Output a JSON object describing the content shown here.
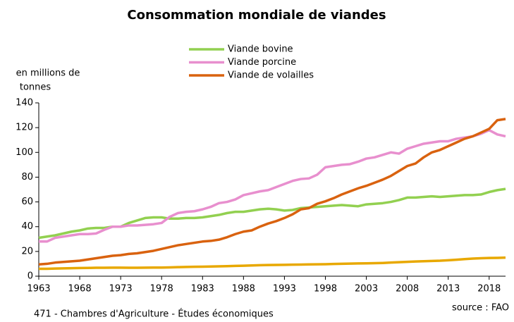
{
  "chart_data": {
    "type": "line",
    "title": "Consommation mondiale de viandes",
    "ylabel": [
      "en millions de",
      "tonnes"
    ],
    "footer": "471 - Chambres d'Agriculture - Études économiques",
    "source": "source : FAO",
    "x": [
      1963,
      1964,
      1965,
      1966,
      1967,
      1968,
      1969,
      1970,
      1971,
      1972,
      1973,
      1974,
      1975,
      1976,
      1977,
      1978,
      1979,
      1980,
      1981,
      1982,
      1983,
      1984,
      1985,
      1986,
      1987,
      1988,
      1989,
      1990,
      1991,
      1992,
      1993,
      1994,
      1995,
      1996,
      1997,
      1998,
      1999,
      2000,
      2001,
      2002,
      2003,
      2004,
      2005,
      2006,
      2007,
      2008,
      2009,
      2010,
      2011,
      2012,
      2013,
      2014,
      2015,
      2016,
      2017,
      2018,
      2019,
      2020
    ],
    "series": [
      {
        "name": "Viande bovine",
        "color": "#92d050",
        "values": [
          31,
          32,
          33,
          34.5,
          36,
          37,
          38.5,
          39,
          39,
          40,
          40,
          43,
          45,
          47,
          47.5,
          47.5,
          46.5,
          46.5,
          47,
          47,
          47.5,
          48.5,
          49.5,
          51,
          52,
          52,
          53,
          54,
          54.5,
          54,
          53,
          53.5,
          55,
          55.5,
          56,
          56.5,
          57,
          57.5,
          57,
          56.5,
          58,
          58.5,
          59,
          60,
          61.5,
          63.5,
          63.5,
          64,
          64.5,
          64,
          64.5,
          65,
          65.5,
          65.5,
          66,
          68,
          69.5,
          70.5
        ]
      },
      {
        "name": "Viande porcine",
        "color": "#e88fce",
        "values": [
          28,
          28,
          31,
          32,
          33,
          34,
          34,
          34.5,
          37.5,
          40,
          40,
          41,
          41,
          41.5,
          42,
          43,
          48,
          51,
          52,
          52.5,
          54,
          56,
          59,
          60,
          62,
          65.5,
          67,
          68.5,
          69.5,
          72,
          74.5,
          77,
          78.5,
          79,
          82,
          88,
          89,
          90,
          90.5,
          92.5,
          95,
          96,
          98,
          100,
          99,
          103,
          105,
          107,
          108,
          109,
          109,
          111,
          112,
          113,
          115,
          118,
          114.5,
          113
        ]
      },
      {
        "name": "Viande de volailles",
        "color": "#d9620f",
        "values": [
          9.5,
          10,
          11,
          11.5,
          12,
          12.5,
          13.5,
          14.5,
          15.5,
          16.5,
          17,
          18,
          18.5,
          19.5,
          20.5,
          22,
          23.5,
          25,
          26,
          27,
          28,
          28.5,
          29.5,
          31.5,
          34,
          36,
          37,
          40,
          42.5,
          44.5,
          47,
          50,
          54,
          55,
          58.5,
          60.5,
          63,
          66,
          68.5,
          71,
          73,
          75.5,
          78,
          81,
          85,
          89,
          91,
          96,
          100,
          102,
          105,
          108,
          111,
          113,
          116,
          119,
          126,
          127
        ]
      },
      {
        "color": "#e8a800",
        "values": [
          6,
          6,
          6.2,
          6.3,
          6.5,
          6.6,
          6.7,
          6.8,
          6.8,
          6.9,
          6.9,
          6.8,
          6.8,
          6.9,
          7,
          7,
          7.1,
          7.3,
          7.5,
          7.6,
          7.7,
          7.8,
          8,
          8.1,
          8.3,
          8.5,
          8.7,
          8.9,
          9,
          9.1,
          9.2,
          9.3,
          9.4,
          9.5,
          9.6,
          9.7,
          9.9,
          10,
          10.2,
          10.3,
          10.4,
          10.5,
          10.7,
          11,
          11.3,
          11.6,
          11.9,
          12.1,
          12.3,
          12.5,
          12.9,
          13.3,
          13.8,
          14.2,
          14.5,
          14.7,
          14.8,
          15
        ]
      }
    ],
    "xlim": [
      1963,
      2020
    ],
    "xticks": [
      1963,
      1968,
      1973,
      1978,
      1983,
      1988,
      1993,
      1998,
      2003,
      2008,
      2013,
      2018
    ],
    "ylim": [
      0,
      140
    ],
    "yticks": [
      0,
      20,
      40,
      60,
      80,
      100,
      120,
      140
    ],
    "grid": false
  }
}
